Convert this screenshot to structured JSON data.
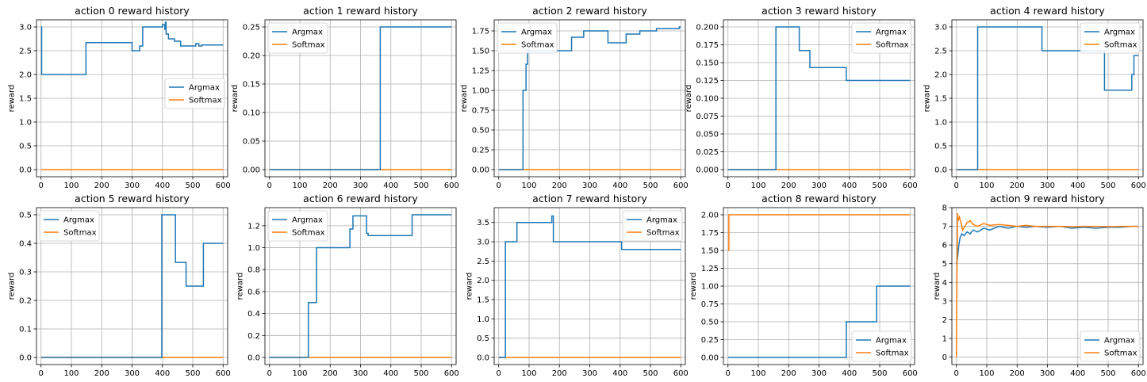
{
  "colors": {
    "argmax": "#1f77b4",
    "softmax": "#ff7f0e",
    "grid": "#b0b0b0",
    "axes": "#000000"
  },
  "chart_data": [
    {
      "type": "line",
      "title": "action 0 reward history",
      "xlabel": "",
      "ylabel": "reward",
      "xlim": [
        -15,
        615
      ],
      "ylim": [
        -0.15,
        3.15
      ],
      "xticks": [
        0,
        100,
        200,
        300,
        400,
        500,
        600
      ],
      "xtick_labels": [
        "0",
        "100",
        "200",
        "300",
        "400",
        "500",
        "600"
      ],
      "yticks": [
        0,
        0.5,
        1,
        1.5,
        2,
        2.5,
        3
      ],
      "ytick_labels": [
        "0.0",
        "0.5",
        "1.0",
        "1.5",
        "2.0",
        "2.5",
        "3.0"
      ],
      "grid": true,
      "legend": "center-right",
      "series": [
        {
          "name": "Argmax",
          "step": true,
          "x": [
            0,
            2,
            148,
            300,
            325,
            335,
            400,
            408,
            410,
            412,
            420,
            440,
            460,
            500,
            510,
            520,
            530,
            600
          ],
          "y": [
            3,
            2,
            2.67,
            2.5,
            2.6,
            3,
            3.05,
            2.95,
            3.1,
            2.85,
            2.75,
            2.7,
            2.6,
            2.6,
            2.65,
            2.6,
            2.62,
            2.62
          ]
        },
        {
          "name": "Softmax",
          "step": true,
          "x": [
            0,
            600
          ],
          "y": [
            0,
            0
          ]
        }
      ]
    },
    {
      "type": "line",
      "title": "action 1 reward history",
      "xlabel": "",
      "ylabel": "reward",
      "xlim": [
        -15,
        615
      ],
      "ylim": [
        -0.0125,
        0.2625
      ],
      "xticks": [
        0,
        100,
        200,
        300,
        400,
        500,
        600
      ],
      "xtick_labels": [
        "0",
        "100",
        "200",
        "300",
        "400",
        "500",
        "600"
      ],
      "yticks": [
        0,
        0.05,
        0.1,
        0.15,
        0.2,
        0.25
      ],
      "ytick_labels": [
        "0.00",
        "0.05",
        "0.10",
        "0.15",
        "0.20",
        "0.25"
      ],
      "grid": true,
      "legend": "top-left",
      "series": [
        {
          "name": "Argmax",
          "step": true,
          "x": [
            0,
            365,
            600
          ],
          "y": [
            0,
            0.25,
            0.25
          ]
        },
        {
          "name": "Softmax",
          "step": true,
          "x": [
            0,
            600
          ],
          "y": [
            0,
            0
          ]
        }
      ]
    },
    {
      "type": "line",
      "title": "action 2 reward history",
      "xlabel": "",
      "ylabel": "reward",
      "xlim": [
        -15,
        615
      ],
      "ylim": [
        -0.09,
        1.89
      ],
      "xticks": [
        0,
        100,
        200,
        300,
        400,
        500,
        600
      ],
      "xtick_labels": [
        "0",
        "100",
        "200",
        "300",
        "400",
        "500",
        "600"
      ],
      "yticks": [
        0,
        0.25,
        0.5,
        0.75,
        1,
        1.25,
        1.5,
        1.75
      ],
      "ytick_labels": [
        "0.00",
        "0.25",
        "0.50",
        "0.75",
        "1.00",
        "1.25",
        "1.50",
        "1.75"
      ],
      "grid": true,
      "legend": "top-left",
      "series": [
        {
          "name": "Argmax",
          "step": true,
          "x": [
            0,
            80,
            90,
            95,
            100,
            240,
            280,
            360,
            420,
            465,
            520,
            595,
            600
          ],
          "y": [
            0,
            1,
            1.33,
            1.5,
            1.5,
            1.67,
            1.75,
            1.6,
            1.71,
            1.75,
            1.78,
            1.8,
            1.8
          ]
        },
        {
          "name": "Softmax",
          "step": true,
          "x": [
            0,
            600
          ],
          "y": [
            0,
            0
          ]
        }
      ]
    },
    {
      "type": "line",
      "title": "action 3 reward history",
      "xlabel": "",
      "ylabel": "reward",
      "xlim": [
        -15,
        615
      ],
      "ylim": [
        -0.01,
        0.21
      ],
      "xticks": [
        0,
        100,
        200,
        300,
        400,
        500,
        600
      ],
      "xtick_labels": [
        "0",
        "100",
        "200",
        "300",
        "400",
        "500",
        "600"
      ],
      "yticks": [
        0,
        0.025,
        0.05,
        0.075,
        0.1,
        0.125,
        0.15,
        0.175,
        0.2
      ],
      "ytick_labels": [
        "0.000",
        "0.025",
        "0.050",
        "0.075",
        "0.100",
        "0.125",
        "0.150",
        "0.175",
        "0.200"
      ],
      "grid": true,
      "legend": "top-right",
      "series": [
        {
          "name": "Argmax",
          "step": true,
          "x": [
            0,
            158,
            235,
            270,
            390,
            600
          ],
          "y": [
            0,
            0.2,
            0.167,
            0.143,
            0.125,
            0.125
          ]
        },
        {
          "name": "Softmax",
          "step": true,
          "x": [
            0,
            600
          ],
          "y": [
            0,
            0
          ]
        }
      ]
    },
    {
      "type": "line",
      "title": "action 4 reward history",
      "xlabel": "",
      "ylabel": "reward",
      "xlim": [
        -15,
        615
      ],
      "ylim": [
        -0.15,
        3.15
      ],
      "xticks": [
        0,
        100,
        200,
        300,
        400,
        500,
        600
      ],
      "xtick_labels": [
        "0",
        "100",
        "200",
        "300",
        "400",
        "500",
        "600"
      ],
      "yticks": [
        0,
        0.5,
        1,
        1.5,
        2,
        2.5,
        3
      ],
      "ytick_labels": [
        "0.0",
        "0.5",
        "1.0",
        "1.5",
        "2.0",
        "2.5",
        "3.0"
      ],
      "grid": true,
      "legend": "top-right",
      "series": [
        {
          "name": "Argmax",
          "step": true,
          "x": [
            0,
            70,
            282,
            488,
            578,
            585,
            600
          ],
          "y": [
            0,
            3,
            2.5,
            1.67,
            2,
            2.4,
            2.4
          ]
        },
        {
          "name": "Softmax",
          "step": true,
          "x": [
            0,
            600
          ],
          "y": [
            0,
            0
          ]
        }
      ]
    },
    {
      "type": "line",
      "title": "action 5 reward history",
      "xlabel": "",
      "ylabel": "reward",
      "xlim": [
        -15,
        615
      ],
      "ylim": [
        -0.025,
        0.525
      ],
      "xticks": [
        0,
        100,
        200,
        300,
        400,
        500,
        600
      ],
      "xtick_labels": [
        "0",
        "100",
        "200",
        "300",
        "400",
        "500",
        "600"
      ],
      "yticks": [
        0,
        0.1,
        0.2,
        0.3,
        0.4,
        0.5
      ],
      "ytick_labels": [
        "0.0",
        "0.1",
        "0.2",
        "0.3",
        "0.4",
        "0.5"
      ],
      "grid": true,
      "legend": "top-left",
      "series": [
        {
          "name": "Argmax",
          "step": true,
          "x": [
            0,
            398,
            443,
            478,
            535,
            600
          ],
          "y": [
            0,
            0.5,
            0.333,
            0.25,
            0.4,
            0.4
          ]
        },
        {
          "name": "Softmax",
          "step": true,
          "x": [
            0,
            600
          ],
          "y": [
            0,
            0
          ]
        }
      ]
    },
    {
      "type": "line",
      "title": "action 6 reward history",
      "xlabel": "",
      "ylabel": "reward",
      "xlim": [
        -15,
        615
      ],
      "ylim": [
        -0.065,
        1.365
      ],
      "xticks": [
        0,
        100,
        200,
        300,
        400,
        500,
        600
      ],
      "xtick_labels": [
        "0",
        "100",
        "200",
        "300",
        "400",
        "500",
        "600"
      ],
      "yticks": [
        0,
        0.2,
        0.4,
        0.6,
        0.8,
        1,
        1.2
      ],
      "ytick_labels": [
        "0.0",
        "0.2",
        "0.4",
        "0.6",
        "0.8",
        "1.0",
        "1.2"
      ],
      "grid": true,
      "legend": "top-left",
      "series": [
        {
          "name": "Argmax",
          "step": true,
          "x": [
            0,
            128,
            155,
            265,
            275,
            320,
            325,
            470,
            600
          ],
          "y": [
            0,
            0.5,
            1,
            1.17,
            1.29,
            1.13,
            1.11,
            1.3,
            1.3
          ]
        },
        {
          "name": "Softmax",
          "step": true,
          "x": [
            0,
            600
          ],
          "y": [
            0,
            0
          ]
        }
      ]
    },
    {
      "type": "line",
      "title": "action 7 reward history",
      "xlabel": "",
      "ylabel": "reward",
      "xlim": [
        -15,
        615
      ],
      "ylim": [
        -0.185,
        3.885
      ],
      "xticks": [
        0,
        100,
        200,
        300,
        400,
        500,
        600
      ],
      "xtick_labels": [
        "0",
        "100",
        "200",
        "300",
        "400",
        "500",
        "600"
      ],
      "yticks": [
        0,
        0.5,
        1,
        1.5,
        2,
        2.5,
        3,
        3.5
      ],
      "ytick_labels": [
        "0.0",
        "0.5",
        "1.0",
        "1.5",
        "2.0",
        "2.5",
        "3.0",
        "3.5"
      ],
      "grid": true,
      "legend": "top-right",
      "series": [
        {
          "name": "Argmax",
          "step": true,
          "x": [
            0,
            22,
            60,
            175,
            180,
            405,
            600
          ],
          "y": [
            0,
            3,
            3.5,
            3.67,
            3,
            2.8,
            2.8
          ]
        },
        {
          "name": "Softmax",
          "step": true,
          "x": [
            0,
            600
          ],
          "y": [
            0,
            0
          ]
        }
      ]
    },
    {
      "type": "line",
      "title": "action 8 reward history",
      "xlabel": "",
      "ylabel": "reward",
      "xlim": [
        -15,
        615
      ],
      "ylim": [
        -0.1,
        2.1
      ],
      "xticks": [
        0,
        100,
        200,
        300,
        400,
        500,
        600
      ],
      "xtick_labels": [
        "0",
        "100",
        "200",
        "300",
        "400",
        "500",
        "600"
      ],
      "yticks": [
        0,
        0.25,
        0.5,
        0.75,
        1,
        1.25,
        1.5,
        1.75,
        2
      ],
      "ytick_labels": [
        "0.00",
        "0.25",
        "0.50",
        "0.75",
        "1.00",
        "1.25",
        "1.50",
        "1.75",
        "2.00"
      ],
      "grid": true,
      "legend": "bottom-right",
      "series": [
        {
          "name": "Argmax",
          "step": true,
          "x": [
            0,
            390,
            490,
            600
          ],
          "y": [
            0,
            0.5,
            1,
            1
          ]
        },
        {
          "name": "Softmax",
          "step": true,
          "x": [
            0,
            3,
            600
          ],
          "y": [
            1.5,
            2,
            2
          ]
        }
      ]
    },
    {
      "type": "line",
      "title": "action 9 reward history",
      "xlabel": "",
      "ylabel": "reward",
      "xlim": [
        -15,
        615
      ],
      "ylim": [
        -0.4,
        8
      ],
      "xticks": [
        0,
        100,
        200,
        300,
        400,
        500,
        600
      ],
      "xtick_labels": [
        "0",
        "100",
        "200",
        "300",
        "400",
        "500",
        "600"
      ],
      "yticks": [
        0,
        1,
        2,
        3,
        4,
        5,
        6,
        7,
        8
      ],
      "ytick_labels": [
        "0",
        "1",
        "2",
        "3",
        "4",
        "5",
        "6",
        "7",
        "8"
      ],
      "grid": true,
      "legend": "bottom-right",
      "series": [
        {
          "name": "Argmax",
          "step": false,
          "x": [
            0,
            3,
            8,
            12,
            18,
            25,
            35,
            45,
            55,
            70,
            90,
            110,
            140,
            170,
            200,
            230,
            260,
            300,
            340,
            380,
            420,
            460,
            500,
            540,
            580,
            600
          ],
          "y": [
            5,
            5.2,
            6.0,
            6.4,
            6.6,
            6.5,
            6.7,
            6.6,
            6.8,
            6.7,
            6.9,
            6.8,
            7.0,
            6.9,
            7.0,
            6.95,
            7.0,
            6.95,
            7.0,
            6.9,
            6.95,
            6.9,
            6.95,
            6.95,
            7.0,
            7.0
          ]
        },
        {
          "name": "Softmax",
          "step": false,
          "x": [
            0,
            2,
            4,
            6,
            10,
            15,
            20,
            28,
            35,
            45,
            55,
            70,
            90,
            110,
            140,
            170,
            200,
            230,
            260,
            300,
            340,
            380,
            420,
            460,
            500,
            540,
            580,
            600
          ],
          "y": [
            0,
            5,
            7.7,
            7.3,
            7.5,
            7.2,
            6.8,
            7.0,
            7.2,
            7.3,
            7.1,
            7.0,
            7.15,
            7.05,
            7.1,
            7.05,
            7.0,
            7.05,
            7.0,
            7.0,
            7.0,
            6.98,
            7.0,
            7.0,
            6.98,
            7.0,
            7.0,
            7.0
          ]
        }
      ]
    }
  ]
}
